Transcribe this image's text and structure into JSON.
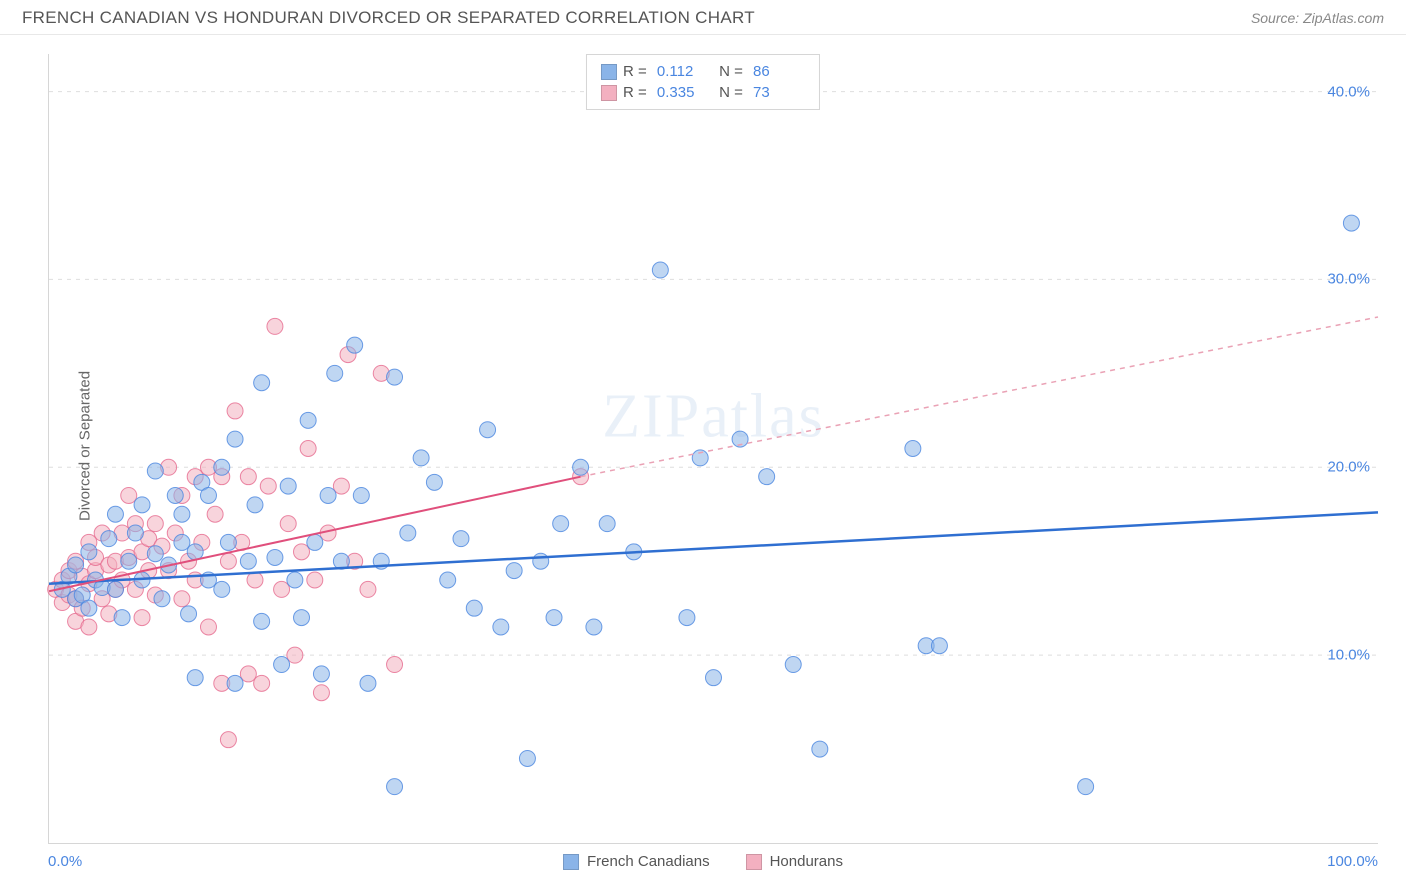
{
  "header": {
    "title": "FRENCH CANADIAN VS HONDURAN DIVORCED OR SEPARATED CORRELATION CHART",
    "source_label": "Source:",
    "source_name": "ZipAtlas.com"
  },
  "chart": {
    "type": "scatter",
    "ylabel": "Divorced or Separated",
    "xlim": [
      0,
      100
    ],
    "ylim": [
      0,
      42
    ],
    "x_ticks": [
      {
        "value": 0,
        "label": "0.0%"
      },
      {
        "value": 100,
        "label": "100.0%"
      }
    ],
    "y_ticks": [
      {
        "value": 10,
        "label": "10.0%"
      },
      {
        "value": 20,
        "label": "20.0%"
      },
      {
        "value": 30,
        "label": "30.0%"
      },
      {
        "value": 40,
        "label": "40.0%"
      }
    ],
    "background_color": "#ffffff",
    "grid_color": "#dedede",
    "marker_radius": 8,
    "marker_opacity": 0.55,
    "series": [
      {
        "id": "french_canadians",
        "label": "French Canadians",
        "color": "#8ab4e8",
        "stroke": "#4a86e0",
        "trend": {
          "x1": 0,
          "y1": 13.8,
          "x2": 100,
          "y2": 17.6,
          "color": "#2f6fd1",
          "width": 2.5,
          "dash": "none"
        },
        "stats": {
          "R": "0.112",
          "N": "86"
        },
        "points": [
          [
            1,
            13.5
          ],
          [
            1.5,
            14.2
          ],
          [
            2,
            13
          ],
          [
            2,
            14.8
          ],
          [
            2.5,
            13.2
          ],
          [
            3,
            12.5
          ],
          [
            3,
            15.5
          ],
          [
            3.5,
            14
          ],
          [
            4,
            13.6
          ],
          [
            4.5,
            16.2
          ],
          [
            5,
            13.5
          ],
          [
            5,
            17.5
          ],
          [
            5.5,
            12
          ],
          [
            6,
            15
          ],
          [
            6.5,
            16.5
          ],
          [
            7,
            14
          ],
          [
            7,
            18
          ],
          [
            8,
            15.4
          ],
          [
            8,
            19.8
          ],
          [
            8.5,
            13
          ],
          [
            9,
            14.8
          ],
          [
            9.5,
            18.5
          ],
          [
            10,
            16
          ],
          [
            10,
            17.5
          ],
          [
            10.5,
            12.2
          ],
          [
            11,
            8.8
          ],
          [
            11,
            15.5
          ],
          [
            11.5,
            19.2
          ],
          [
            12,
            14
          ],
          [
            12,
            18.5
          ],
          [
            13,
            13.5
          ],
          [
            13,
            20
          ],
          [
            13.5,
            16
          ],
          [
            14,
            8.5
          ],
          [
            14,
            21.5
          ],
          [
            15,
            15
          ],
          [
            15.5,
            18
          ],
          [
            16,
            11.8
          ],
          [
            16,
            24.5
          ],
          [
            17,
            15.2
          ],
          [
            17.5,
            9.5
          ],
          [
            18,
            19
          ],
          [
            18.5,
            14
          ],
          [
            19,
            12
          ],
          [
            19.5,
            22.5
          ],
          [
            20,
            16
          ],
          [
            20.5,
            9
          ],
          [
            21,
            18.5
          ],
          [
            21.5,
            25
          ],
          [
            22,
            15
          ],
          [
            23,
            26.5
          ],
          [
            23.5,
            18.5
          ],
          [
            24,
            8.5
          ],
          [
            25,
            15
          ],
          [
            26,
            3
          ],
          [
            26,
            24.8
          ],
          [
            27,
            16.5
          ],
          [
            28,
            20.5
          ],
          [
            29,
            19.2
          ],
          [
            30,
            14
          ],
          [
            31,
            16.2
          ],
          [
            32,
            12.5
          ],
          [
            33,
            22
          ],
          [
            34,
            11.5
          ],
          [
            35,
            14.5
          ],
          [
            36,
            4.5
          ],
          [
            37,
            15
          ],
          [
            38,
            12
          ],
          [
            38.5,
            17
          ],
          [
            40,
            20
          ],
          [
            41,
            11.5
          ],
          [
            42,
            17
          ],
          [
            44,
            15.5
          ],
          [
            46,
            30.5
          ],
          [
            48,
            12
          ],
          [
            49,
            20.5
          ],
          [
            50,
            8.8
          ],
          [
            52,
            21.5
          ],
          [
            54,
            19.5
          ],
          [
            56,
            9.5
          ],
          [
            58,
            5
          ],
          [
            65,
            21
          ],
          [
            66,
            10.5
          ],
          [
            67,
            10.5
          ],
          [
            78,
            3
          ],
          [
            98,
            33
          ]
        ]
      },
      {
        "id": "hondurans",
        "label": "Hondurans",
        "color": "#f3b0c0",
        "stroke": "#e66a8e",
        "trend_solid": {
          "x1": 0,
          "y1": 13.4,
          "x2": 40,
          "y2": 19.5,
          "color": "#e04f7c",
          "width": 2,
          "dash": "none"
        },
        "trend_dash": {
          "x1": 40,
          "y1": 19.5,
          "x2": 100,
          "y2": 28,
          "color": "#eaa2b5",
          "width": 1.5,
          "dash": "5,5"
        },
        "stats": {
          "R": "0.335",
          "N": "73"
        },
        "points": [
          [
            0.5,
            13.5
          ],
          [
            1,
            14
          ],
          [
            1,
            12.8
          ],
          [
            1.5,
            13.2
          ],
          [
            1.5,
            14.5
          ],
          [
            2,
            13
          ],
          [
            2,
            15
          ],
          [
            2,
            11.8
          ],
          [
            2.5,
            14.2
          ],
          [
            2.5,
            12.5
          ],
          [
            3,
            13.8
          ],
          [
            3,
            16
          ],
          [
            3,
            11.5
          ],
          [
            3.5,
            14.5
          ],
          [
            3.5,
            15.2
          ],
          [
            4,
            13
          ],
          [
            4,
            16.5
          ],
          [
            4.5,
            14.8
          ],
          [
            4.5,
            12.2
          ],
          [
            5,
            15
          ],
          [
            5,
            13.5
          ],
          [
            5.5,
            16.5
          ],
          [
            5.5,
            14
          ],
          [
            6,
            15.2
          ],
          [
            6,
            18.5
          ],
          [
            6.5,
            13.5
          ],
          [
            6.5,
            17
          ],
          [
            7,
            15.5
          ],
          [
            7,
            12
          ],
          [
            7.5,
            16.2
          ],
          [
            7.5,
            14.5
          ],
          [
            8,
            17
          ],
          [
            8,
            13.2
          ],
          [
            8.5,
            15.8
          ],
          [
            9,
            20
          ],
          [
            9,
            14.5
          ],
          [
            9.5,
            16.5
          ],
          [
            10,
            18.5
          ],
          [
            10,
            13
          ],
          [
            10.5,
            15
          ],
          [
            11,
            19.5
          ],
          [
            11,
            14
          ],
          [
            11.5,
            16
          ],
          [
            12,
            20
          ],
          [
            12,
            11.5
          ],
          [
            12.5,
            17.5
          ],
          [
            13,
            19.5
          ],
          [
            13,
            8.5
          ],
          [
            13.5,
            15
          ],
          [
            14,
            23
          ],
          [
            14.5,
            16
          ],
          [
            15,
            9
          ],
          [
            15,
            19.5
          ],
          [
            15.5,
            14
          ],
          [
            16,
            8.5
          ],
          [
            16.5,
            19
          ],
          [
            17,
            27.5
          ],
          [
            17.5,
            13.5
          ],
          [
            18,
            17
          ],
          [
            18.5,
            10
          ],
          [
            19,
            15.5
          ],
          [
            19.5,
            21
          ],
          [
            20,
            14
          ],
          [
            20.5,
            8
          ],
          [
            21,
            16.5
          ],
          [
            22,
            19
          ],
          [
            22.5,
            26
          ],
          [
            23,
            15
          ],
          [
            24,
            13.5
          ],
          [
            25,
            25
          ],
          [
            26,
            9.5
          ],
          [
            13.5,
            5.5
          ],
          [
            40,
            19.5
          ]
        ]
      }
    ],
    "legend_bottom": [
      {
        "label": "French Canadians",
        "color": "#8ab4e8"
      },
      {
        "label": "Hondurans",
        "color": "#f3b0c0"
      }
    ],
    "watermark": "ZIPatlas"
  }
}
